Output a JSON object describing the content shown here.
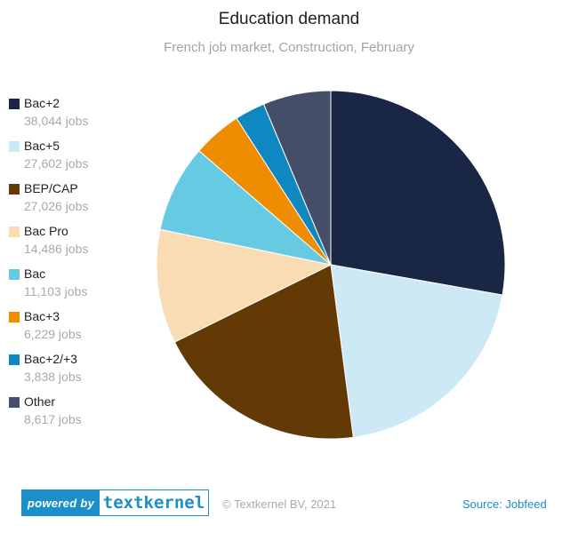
{
  "chart_data": {
    "type": "pie",
    "title": "Education demand",
    "subtitle": "French job market, Construction, February",
    "legend_position": "left",
    "slices": [
      {
        "name": "Bac+2",
        "value": 38044,
        "value_label": "38,044 jobs",
        "color": "#1a2744"
      },
      {
        "name": "Bac+5",
        "value": 27602,
        "value_label": "27,602 jobs",
        "color": "#cde9f6"
      },
      {
        "name": "BEP/CAP",
        "value": 27026,
        "value_label": "27,026 jobs",
        "color": "#633a06"
      },
      {
        "name": "Bac Pro",
        "value": 14486,
        "value_label": "14,486 jobs",
        "color": "#f9dcb4"
      },
      {
        "name": "Bac",
        "value": 11103,
        "value_label": "11,103 jobs",
        "color": "#66cae3"
      },
      {
        "name": "Bac+3",
        "value": 6229,
        "value_label": "6,229 jobs",
        "color": "#f08c00"
      },
      {
        "name": "Bac+2/+3",
        "value": 3838,
        "value_label": "3,838 jobs",
        "color": "#0f87c0"
      },
      {
        "name": "Other",
        "value": 8617,
        "value_label": "8,617 jobs",
        "color": "#454e68"
      }
    ]
  },
  "footer": {
    "badge_left": "powered by",
    "badge_right": "textkernel",
    "copyright": "© Textkernel BV, 2021",
    "source": "Source:  Jobfeed"
  }
}
